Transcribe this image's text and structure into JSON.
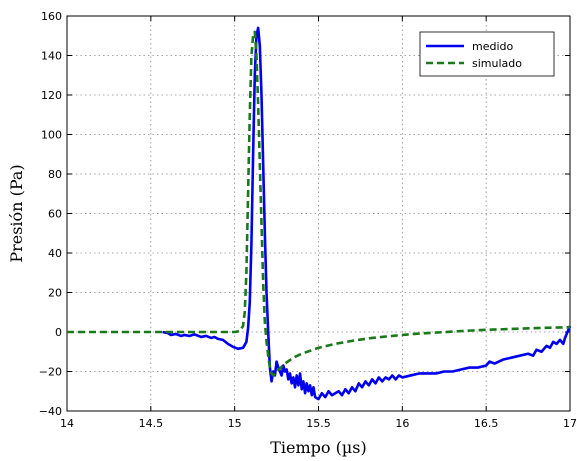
{
  "chart_data": {
    "type": "line",
    "xlabel": "Tiempo (µs)",
    "ylabel": "Presión (Pa)",
    "xlim": [
      14,
      17
    ],
    "ylim": [
      -40,
      160
    ],
    "xticks": [
      14,
      14.5,
      15,
      15.5,
      16,
      16.5,
      17
    ],
    "xtick_labels": [
      "14",
      "14.5",
      "15",
      "15.5",
      "16",
      "16.5",
      "17"
    ],
    "yticks": [
      -40,
      -20,
      0,
      20,
      40,
      60,
      80,
      100,
      120,
      140,
      160
    ],
    "ytick_labels": [
      "−40",
      "−20",
      "0",
      "20",
      "40",
      "60",
      "80",
      "100",
      "120",
      "140",
      "160"
    ],
    "grid": true,
    "legend_position": "top-right",
    "series": [
      {
        "name": "medido",
        "color": "#0000ee",
        "style": "solid",
        "points": [
          [
            14.57,
            0
          ],
          [
            14.6,
            -0.5
          ],
          [
            14.62,
            -1.5
          ],
          [
            14.65,
            -1
          ],
          [
            14.68,
            -2
          ],
          [
            14.7,
            -1.5
          ],
          [
            14.73,
            -2
          ],
          [
            14.76,
            -1.2
          ],
          [
            14.8,
            -2.5
          ],
          [
            14.83,
            -2
          ],
          [
            14.86,
            -3
          ],
          [
            14.88,
            -2.5
          ],
          [
            14.9,
            -3.5
          ],
          [
            14.93,
            -4
          ],
          [
            14.96,
            -6
          ],
          [
            14.99,
            -7.5
          ],
          [
            15.02,
            -8.5
          ],
          [
            15.05,
            -8
          ],
          [
            15.07,
            -5
          ],
          [
            15.08,
            2
          ],
          [
            15.09,
            15
          ],
          [
            15.1,
            45
          ],
          [
            15.11,
            90
          ],
          [
            15.12,
            130
          ],
          [
            15.13,
            150
          ],
          [
            15.14,
            154
          ],
          [
            15.15,
            145
          ],
          [
            15.16,
            120
          ],
          [
            15.17,
            85
          ],
          [
            15.18,
            50
          ],
          [
            15.19,
            20
          ],
          [
            15.2,
            0
          ],
          [
            15.21,
            -18
          ],
          [
            15.22,
            -25
          ],
          [
            15.23,
            -20
          ],
          [
            15.24,
            -22
          ],
          [
            15.25,
            -15
          ],
          [
            15.26,
            -18
          ],
          [
            15.27,
            -20
          ],
          [
            15.28,
            -22
          ],
          [
            15.29,
            -17
          ],
          [
            15.3,
            -20
          ],
          [
            15.31,
            -19
          ],
          [
            15.32,
            -24
          ],
          [
            15.33,
            -21
          ],
          [
            15.34,
            -26
          ],
          [
            15.35,
            -23
          ],
          [
            15.36,
            -28
          ],
          [
            15.37,
            -22
          ],
          [
            15.38,
            -27
          ],
          [
            15.39,
            -21
          ],
          [
            15.4,
            -29
          ],
          [
            15.41,
            -25
          ],
          [
            15.42,
            -31
          ],
          [
            15.43,
            -26
          ],
          [
            15.44,
            -30
          ],
          [
            15.45,
            -27
          ],
          [
            15.46,
            -32
          ],
          [
            15.47,
            -28
          ],
          [
            15.48,
            -33
          ],
          [
            15.5,
            -34
          ],
          [
            15.52,
            -31
          ],
          [
            15.54,
            -33
          ],
          [
            15.56,
            -30
          ],
          [
            15.58,
            -32
          ],
          [
            15.6,
            -31
          ],
          [
            15.62,
            -30
          ],
          [
            15.64,
            -32
          ],
          [
            15.66,
            -29
          ],
          [
            15.68,
            -31
          ],
          [
            15.7,
            -28
          ],
          [
            15.72,
            -30
          ],
          [
            15.74,
            -26
          ],
          [
            15.76,
            -28
          ],
          [
            15.78,
            -25
          ],
          [
            15.8,
            -27
          ],
          [
            15.82,
            -24
          ],
          [
            15.84,
            -26
          ],
          [
            15.86,
            -23
          ],
          [
            15.88,
            -25
          ],
          [
            15.9,
            -23
          ],
          [
            15.92,
            -24
          ],
          [
            15.94,
            -22
          ],
          [
            15.96,
            -24
          ],
          [
            15.98,
            -22
          ],
          [
            16,
            -23
          ],
          [
            16.05,
            -22
          ],
          [
            16.1,
            -21
          ],
          [
            16.15,
            -21
          ],
          [
            16.2,
            -21
          ],
          [
            16.25,
            -20
          ],
          [
            16.3,
            -20
          ],
          [
            16.35,
            -19
          ],
          [
            16.4,
            -18
          ],
          [
            16.45,
            -18
          ],
          [
            16.5,
            -17
          ],
          [
            16.52,
            -15
          ],
          [
            16.55,
            -16
          ],
          [
            16.6,
            -14
          ],
          [
            16.65,
            -13
          ],
          [
            16.7,
            -12
          ],
          [
            16.75,
            -11
          ],
          [
            16.78,
            -12
          ],
          [
            16.8,
            -9
          ],
          [
            16.83,
            -10
          ],
          [
            16.86,
            -7
          ],
          [
            16.88,
            -8
          ],
          [
            16.9,
            -5
          ],
          [
            16.92,
            -6
          ],
          [
            16.94,
            -4
          ],
          [
            16.96,
            -6
          ],
          [
            16.97,
            -3
          ],
          [
            16.98,
            -1
          ],
          [
            16.99,
            1
          ],
          [
            17,
            3
          ]
        ]
      },
      {
        "name": "simulado",
        "color": "#1a7a1a",
        "style": "dashed",
        "points": [
          [
            14,
            0
          ],
          [
            14.5,
            0
          ],
          [
            15.0,
            0
          ],
          [
            15.03,
            0.5
          ],
          [
            15.05,
            3
          ],
          [
            15.06,
            10
          ],
          [
            15.07,
            30
          ],
          [
            15.08,
            70
          ],
          [
            15.09,
            110
          ],
          [
            15.1,
            140
          ],
          [
            15.11,
            150
          ],
          [
            15.12,
            152
          ],
          [
            15.13,
            140
          ],
          [
            15.14,
            115
          ],
          [
            15.15,
            85
          ],
          [
            15.16,
            55
          ],
          [
            15.17,
            25
          ],
          [
            15.18,
            5
          ],
          [
            15.19,
            -5
          ],
          [
            15.2,
            -12
          ],
          [
            15.21,
            -18
          ],
          [
            15.22,
            -21
          ],
          [
            15.23,
            -22
          ],
          [
            15.24,
            -21
          ],
          [
            15.25,
            -20
          ],
          [
            15.3,
            -16
          ],
          [
            15.35,
            -13
          ],
          [
            15.4,
            -11
          ],
          [
            15.5,
            -8
          ],
          [
            15.6,
            -6
          ],
          [
            15.7,
            -4.5
          ],
          [
            15.8,
            -3.2
          ],
          [
            15.9,
            -2.3
          ],
          [
            16,
            -1.5
          ],
          [
            16.1,
            -0.8
          ],
          [
            16.2,
            -0.3
          ],
          [
            16.3,
            0.2
          ],
          [
            16.4,
            0.7
          ],
          [
            16.5,
            1.1
          ],
          [
            16.6,
            1.4
          ],
          [
            16.7,
            1.7
          ],
          [
            16.8,
            2
          ],
          [
            16.9,
            2.2
          ],
          [
            17,
            2.4
          ]
        ]
      }
    ]
  }
}
